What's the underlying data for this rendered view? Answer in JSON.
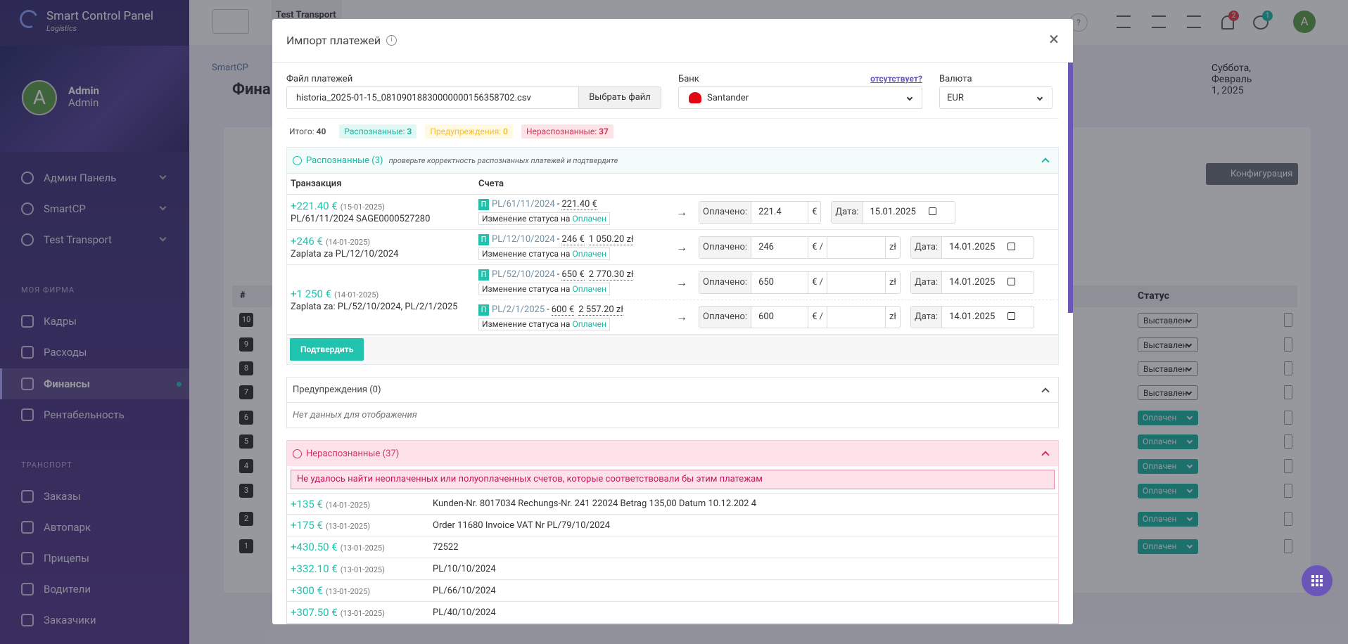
{
  "sidebar": {
    "brand": "Smart Control Panel",
    "brand_sub": "Logistics",
    "user_name": "Admin",
    "user_role": "Admin",
    "avatar": "A",
    "menu": [
      "Админ Панель",
      "SmartCP",
      "Test Transport"
    ],
    "sections": [
      {
        "title": "МОЯ ФИРМА",
        "items": [
          "Кадры",
          "Расходы",
          "Финансы",
          "Рентабельность"
        ]
      },
      {
        "title": "ТРАНСПОРТ",
        "items": [
          "Заказы",
          "Автопарк",
          "Прицепы",
          "Водители",
          "Заказчики"
        ]
      }
    ]
  },
  "topbar": {
    "tab": "Test Transport",
    "help": "?",
    "notifications": "2",
    "users": "1",
    "avatar": "A"
  },
  "page": {
    "breadcrumb": "SmartCP",
    "date": "Суббота, Февраль 1, 2025",
    "title": "Фина",
    "config_button": "Конфигурация",
    "id_header": "#",
    "status_header": "Статус",
    "rows": [
      {
        "num": "10",
        "status": "Выставлен"
      },
      {
        "num": "9",
        "status": "Выставлен"
      },
      {
        "num": "8",
        "status": "Выставлен"
      },
      {
        "num": "7",
        "status": "Выставлен"
      },
      {
        "num": "6",
        "status": "Оплачен"
      },
      {
        "num": "5",
        "status": "Оплачен"
      },
      {
        "num": "4",
        "status": "Оплачен"
      },
      {
        "num": "3",
        "status": "Оплачен"
      },
      {
        "num": "2",
        "status": "Оплачен"
      },
      {
        "num": "1",
        "status": "Оплачен"
      }
    ]
  },
  "modal": {
    "title": "Импорт платежей",
    "file_label": "Файл платежей",
    "file_name": "historia_2025-01-15_08109018830000000156358702.csv",
    "file_button": "Выбрать файл",
    "bank_label": "Банк",
    "bank_missing": "отсутствует?",
    "bank": "Santander",
    "currency_label": "Валюта",
    "currency": "EUR",
    "summary": [
      {
        "label": "Итого:",
        "value": "40"
      },
      {
        "label": "Распознанные:",
        "value": "3"
      },
      {
        "label": "Предупреждения:",
        "value": "0"
      },
      {
        "label": "Нераспознанные:",
        "value": "37"
      }
    ],
    "recognized_title": "Распознанные (3)",
    "recognized_note": "проверьте корректность распознанных платежей и подтвердите",
    "col_transaction": "Транзакция",
    "col_invoices": "Счета",
    "status_change": "Изменение статуса на",
    "status_value": "Оплачен",
    "paid_label": "Оплачено:",
    "date_label": "Дата:",
    "transactions": [
      {
        "amount": "+221.40 €",
        "date": "(15-01-2025)",
        "description": "PL/61/11/2024 SAGE0000527280",
        "invoices": [
          {
            "badge": "П",
            "number": "PL/61/11/2024",
            "amounts": [
              "221.40 €"
            ],
            "paid": "221.4",
            "suffix": "€",
            "date": "15.01.2025"
          }
        ]
      },
      {
        "amount": "+246 €",
        "date": "(14-01-2025)",
        "description": "Zaplata za PL/12/10/2024",
        "invoices": [
          {
            "badge": "П",
            "number": "PL/12/10/2024",
            "amounts": [
              "246 €",
              "1 050.20 zł"
            ],
            "paid": "246",
            "suffix": "€ /",
            "suffix2": "zł",
            "date": "14.01.2025"
          }
        ]
      },
      {
        "amount": "+1 250 €",
        "date": "(14-01-2025)",
        "description": "Zaplata za: PL/52/10/2024, PL/2/1/2025",
        "invoices": [
          {
            "badge": "П",
            "number": "PL/52/10/2024",
            "amounts": [
              "650 €",
              "2 770.30 zł"
            ],
            "paid": "650",
            "suffix": "€ /",
            "suffix2": "zł",
            "date": "14.01.2025"
          },
          {
            "badge": "П",
            "number": "PL/2/1/2025",
            "amounts": [
              "600 €",
              "2 557.20 zł"
            ],
            "paid": "600",
            "suffix": "€ /",
            "suffix2": "zł",
            "date": "14.01.2025"
          }
        ]
      }
    ],
    "confirm_button": "Подтвердить",
    "warnings_title": "Предупреждения (0)",
    "warnings_empty": "Нет данных для отображения",
    "unrecognized_title": "Нераспознанные (37)",
    "unrecognized_alert": "Не удалось найти неоплаченных или полуоплаченных счетов, которые соответствовали бы этим платежам",
    "unrecognized": [
      {
        "amount": "+135 €",
        "date": "(14-01-2025)",
        "description": "Kunden-Nr. 8017034 Rechungs-Nr. 241 22024 Betrag 135,00 Datum 10.12.202 4"
      },
      {
        "amount": "+175 €",
        "date": "(13-01-2025)",
        "description": "Order 11680 Invoice VAT Nr PL/79/10/2024"
      },
      {
        "amount": "+430.50 €",
        "date": "(13-01-2025)",
        "description": "72522"
      },
      {
        "amount": "+332.10 €",
        "date": "(13-01-2025)",
        "description": "PL/10/10/2024"
      },
      {
        "amount": "+300 €",
        "date": "(13-01-2025)",
        "description": "PL/66/10/2024"
      },
      {
        "amount": "+307.50 €",
        "date": "(13-01-2025)",
        "description": "PL/40/10/2024"
      }
    ]
  }
}
